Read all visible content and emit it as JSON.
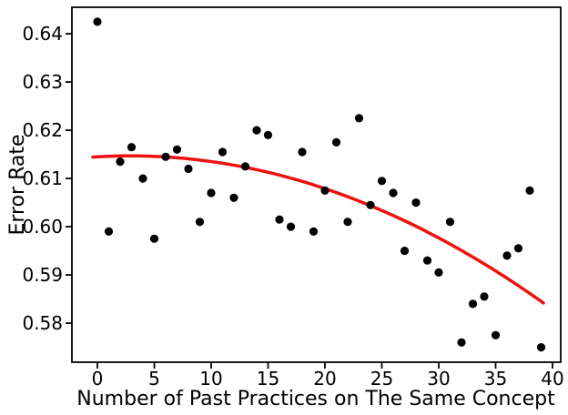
{
  "chart_data": {
    "type": "scatter",
    "title": "",
    "xlabel": "Number of Past Practices on The Same Concept",
    "ylabel": "Error Rate",
    "x": [
      0,
      1,
      2,
      3,
      4,
      5,
      6,
      7,
      8,
      9,
      10,
      11,
      12,
      13,
      14,
      15,
      16,
      17,
      18,
      19,
      20,
      21,
      22,
      23,
      24,
      25,
      26,
      27,
      28,
      29,
      30,
      31,
      32,
      33,
      34,
      35,
      36,
      37,
      38,
      39
    ],
    "y": [
      0.6425,
      0.599,
      0.6135,
      0.6165,
      0.61,
      0.5975,
      0.6145,
      0.616,
      0.612,
      0.601,
      0.607,
      0.6155,
      0.606,
      0.6125,
      0.62,
      0.619,
      0.6015,
      0.6,
      0.6155,
      0.599,
      0.6075,
      0.6175,
      0.601,
      0.6225,
      0.6045,
      0.6095,
      0.607,
      0.595,
      0.605,
      0.593,
      0.5905,
      0.601,
      0.576,
      0.584,
      0.5855,
      0.5775,
      0.594,
      0.5955,
      0.6075,
      0.575
    ],
    "trend_line": {
      "shape": "quadratic",
      "a": 0.6145,
      "b": 0.000132,
      "c": -2.31e-05,
      "x_start": -0.4,
      "x_end": 39.2,
      "color": "#ee1111",
      "stroke_width": 3.5
    },
    "marker": {
      "color": "#000000",
      "radius": 4.6
    },
    "xticks": [
      0,
      5,
      10,
      15,
      20,
      25,
      30,
      35,
      40
    ],
    "yticks": [
      0.58,
      0.59,
      0.6,
      0.61,
      0.62,
      0.63,
      0.64
    ],
    "ytick_decimals": 2,
    "xlim": [
      -2.24,
      40.72
    ],
    "ylim": [
      0.5719,
      0.6455
    ],
    "grid": false,
    "legend": "none",
    "axis_color": "#000000",
    "background_color": "#ffffff"
  }
}
